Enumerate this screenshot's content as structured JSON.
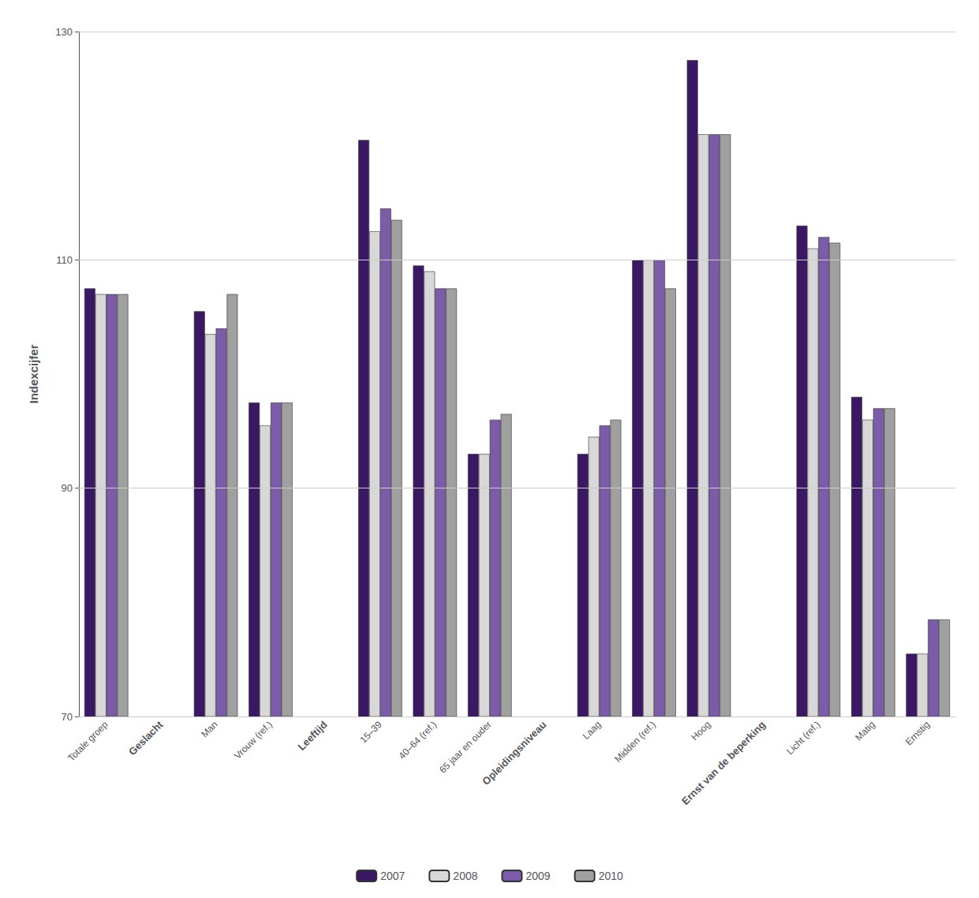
{
  "chart_data": {
    "type": "bar",
    "categories": [
      "Totale groep",
      "Geslacht",
      "Man",
      "Vrouw (ref.)",
      "Leeftijd",
      "15–39",
      "40–64 (ref.)",
      "65 jaar en ouder",
      "Opleidingsniveau",
      "Laag",
      "Midden (ref.)",
      "Hoog",
      "Ernst van de beperking",
      "Licht (ref.)",
      "Matig",
      "Ernstig"
    ],
    "series": [
      {
        "name": "2007",
        "color": "#3b1863",
        "values": [
          107.5,
          null,
          105.5,
          97.5,
          null,
          120.5,
          109.5,
          93.0,
          null,
          93.0,
          110.0,
          127.5,
          null,
          113.0,
          98.0,
          75.5
        ]
      },
      {
        "name": "2008",
        "color": "#d8d8d8",
        "values": [
          107.0,
          null,
          103.5,
          95.5,
          null,
          112.5,
          109.0,
          93.0,
          null,
          94.5,
          110.0,
          121.0,
          null,
          111.0,
          96.0,
          75.5
        ]
      },
      {
        "name": "2009",
        "color": "#7b5ca8",
        "values": [
          107.0,
          null,
          104.0,
          97.5,
          null,
          114.5,
          107.5,
          96.0,
          null,
          95.5,
          110.0,
          121.0,
          null,
          112.0,
          97.0,
          78.5
        ]
      },
      {
        "name": "2010",
        "color": "#a0a0a0",
        "values": [
          107.0,
          null,
          107.0,
          97.5,
          null,
          113.5,
          107.5,
          96.5,
          null,
          96.0,
          107.5,
          121.0,
          null,
          111.5,
          97.0,
          78.5
        ]
      }
    ],
    "ylabel": "Indexcijfer",
    "ylim": [
      70,
      130
    ],
    "yticks": [
      70,
      90,
      110,
      130
    ],
    "grid": true,
    "legend": "bottom"
  }
}
